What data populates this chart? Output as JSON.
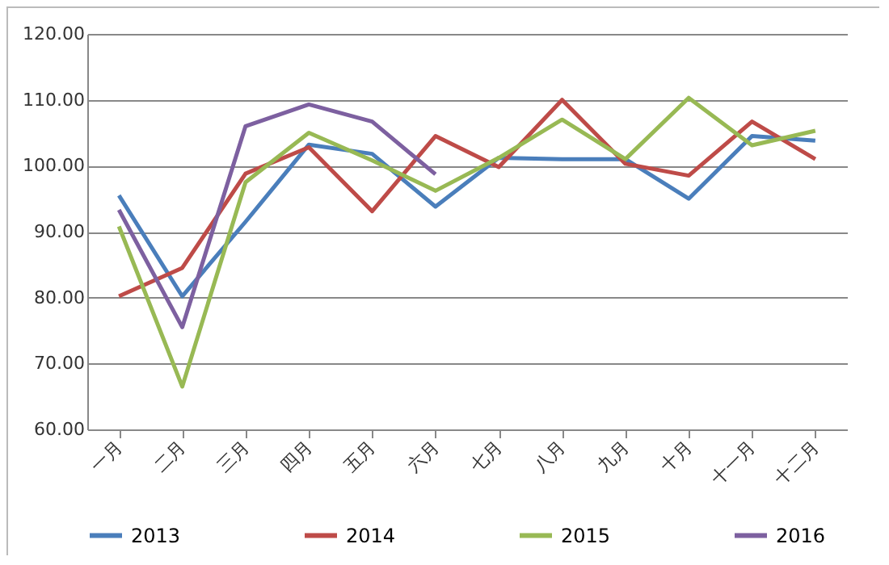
{
  "chart_data": {
    "type": "line",
    "categories": [
      "一月",
      "二月",
      "三月",
      "四月",
      "五月",
      "六月",
      "七月",
      "八月",
      "九月",
      "十月",
      "十一月",
      "十二月"
    ],
    "series": [
      {
        "name": "2013",
        "color": "#4a7ebb",
        "values": [
          95.5,
          80.2,
          91.5,
          103.2,
          101.8,
          93.8,
          101.2,
          101.0,
          101.0,
          95.0,
          104.5,
          103.8
        ]
      },
      {
        "name": "2014",
        "color": "#be4b48",
        "values": [
          80.2,
          84.5,
          98.8,
          102.8,
          93.1,
          104.5,
          99.8,
          110.0,
          100.3,
          98.5,
          106.7,
          101.0
        ]
      },
      {
        "name": "2015",
        "color": "#98b954",
        "values": [
          90.8,
          66.5,
          97.5,
          105.0,
          100.8,
          96.2,
          101.2,
          107.0,
          101.0,
          110.3,
          103.1,
          105.3
        ]
      },
      {
        "name": "2016",
        "color": "#7d60a0",
        "values": [
          93.3,
          75.5,
          106.0,
          109.3,
          106.7,
          98.7,
          null,
          null,
          null,
          null,
          null,
          null
        ]
      }
    ],
    "ylim": [
      60,
      120
    ],
    "yticks": [
      {
        "value": 60,
        "label": "60.00"
      },
      {
        "value": 70,
        "label": "70.00"
      },
      {
        "value": 80,
        "label": "80.00"
      },
      {
        "value": 90,
        "label": "90.00"
      },
      {
        "value": 100,
        "label": "100.00"
      },
      {
        "value": 110,
        "label": "110.00"
      },
      {
        "value": 120,
        "label": "120.00"
      }
    ],
    "grid": "y",
    "legend": "bottom",
    "marker": "none",
    "line_style": "solid"
  }
}
